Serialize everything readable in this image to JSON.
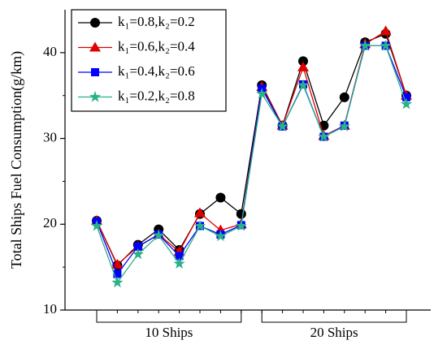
{
  "chart_data": {
    "type": "line",
    "ylabel": "Total Ships Fuel Consumption(g/km)",
    "categories": [
      null,
      null,
      null,
      null,
      null,
      null,
      null,
      null,
      null,
      null,
      null,
      null,
      null,
      null,
      null,
      null
    ],
    "group_labels": [
      "10 Ships",
      "20 Ships"
    ],
    "series": [
      {
        "name": "k₁=0.8,k₂=0.2",
        "color": "#000000",
        "marker": "circle",
        "values": [
          20.4,
          15.2,
          17.6,
          19.4,
          17.0,
          21.2,
          23.1,
          21.2,
          36.2,
          31.5,
          39.0,
          31.5,
          34.8,
          41.2,
          42.2,
          35.0
        ]
      },
      {
        "name": "k₁=0.6,k₂=0.4",
        "color": "#e00000",
        "marker": "triangle",
        "values": [
          20.4,
          15.3,
          17.4,
          18.8,
          16.8,
          21.3,
          19.3,
          20.0,
          36.0,
          31.5,
          38.3,
          30.3,
          31.5,
          41.0,
          42.5,
          35.0
        ]
      },
      {
        "name": "k₁=0.4,k₂=0.6",
        "color": "#0000ff",
        "marker": "square",
        "values": [
          20.3,
          14.2,
          17.4,
          18.8,
          16.3,
          19.8,
          18.8,
          19.9,
          35.8,
          31.4,
          36.3,
          30.2,
          31.5,
          40.8,
          40.8,
          34.8
        ]
      },
      {
        "name": "k₁=0.2,k₂=0.8",
        "color": "#2ab08a",
        "marker": "star",
        "values": [
          19.8,
          13.2,
          16.5,
          18.7,
          15.4,
          19.8,
          18.6,
          19.8,
          35.2,
          31.4,
          36.2,
          30.2,
          31.4,
          40.8,
          40.8,
          34.0
        ]
      }
    ],
    "ylim": [
      10,
      45
    ],
    "yticks": [
      10,
      20,
      30,
      40
    ],
    "yminorticks": [
      15,
      25,
      35
    ],
    "legend": "upper left"
  }
}
